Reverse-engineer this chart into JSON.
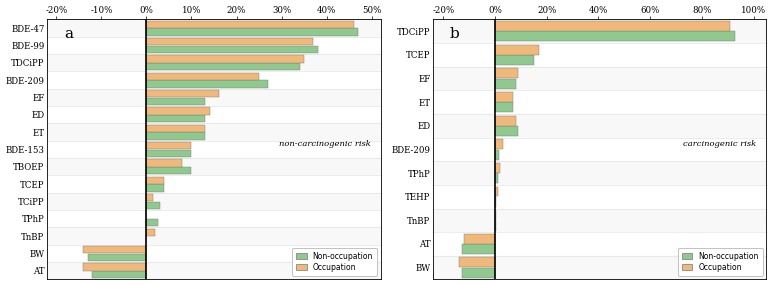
{
  "panel_a": {
    "title": "a",
    "annotation": "non-carcinogenic risk",
    "categories": [
      "BDE-47",
      "BDE-99",
      "TDCiPP",
      "BDE-209",
      "EF",
      "ED",
      "ET",
      "BDE-153",
      "TBOEP",
      "TCEP",
      "TCiPP",
      "TPhP",
      "TnBP",
      "BW",
      "AT"
    ],
    "non_occupation": [
      47,
      38,
      34,
      27,
      13,
      13,
      13,
      10,
      10,
      4,
      3,
      2.5,
      0,
      -13,
      -12
    ],
    "occupation": [
      46,
      37,
      35,
      25,
      16,
      14,
      13,
      10,
      8,
      4,
      1.5,
      0,
      2,
      -14,
      -14
    ],
    "xlim": [
      -22,
      52
    ],
    "xticks": [
      -20,
      -10,
      0,
      10,
      20,
      30,
      40,
      50
    ],
    "xticklabels": [
      "-20%",
      "-10%",
      "0%",
      "10%",
      "20%",
      "30%",
      "40%",
      "50%"
    ]
  },
  "panel_b": {
    "title": "b",
    "annotation": "carcinogenic risk",
    "categories": [
      "TDCiPP",
      "TCEP",
      "EF",
      "ET",
      "ED",
      "BDE-209",
      "TPhP",
      "TEHP",
      "TnBP",
      "AT",
      "BW"
    ],
    "non_occupation": [
      93,
      15,
      8,
      7,
      9,
      1.5,
      1,
      0.5,
      0.5,
      -13,
      -13
    ],
    "occupation": [
      91,
      17,
      9,
      7,
      8,
      3,
      2,
      1,
      0.3,
      -12,
      -14
    ],
    "xlim": [
      -24,
      105
    ],
    "xticks": [
      -20,
      0,
      20,
      40,
      60,
      80,
      100
    ],
    "xticklabels": [
      "-20%",
      "0%",
      "20%",
      "40%",
      "60%",
      "80%",
      "100%"
    ]
  },
  "green_color": "#90c990",
  "orange_color": "#f0b87a",
  "bar_height": 0.42,
  "bar_gap": 0.02,
  "bg_color": "#ffffff",
  "row_line_color": "#e0e0e0",
  "legend_labels": [
    "Non-occupation",
    "Occupation"
  ]
}
